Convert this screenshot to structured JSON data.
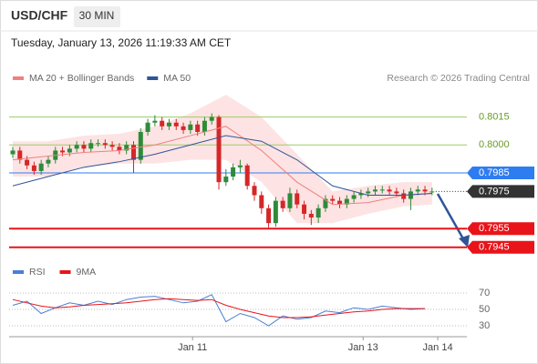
{
  "chart_data": [
    {
      "type": "candlestick",
      "title": "USD/CHF",
      "timeframe": "30 MIN",
      "timestamp": "Tuesday, January 13, 2026 11:19:33 AM CET",
      "credit": "Research © 2026 Trading Central",
      "xlim": [
        0,
        63
      ],
      "ylim": [
        0.7939,
        0.8029
      ],
      "up_color": "#2e8b3a",
      "down_color": "#d62728",
      "open": [
        0.7995,
        0.7997,
        0.7992,
        0.7989,
        0.7986,
        0.799,
        0.7992,
        0.7997,
        0.7996,
        0.7998,
        0.8,
        0.7998,
        0.8001,
        0.8001,
        0.8,
        0.7999,
        0.7997,
        0.8,
        0.7992,
        0.8007,
        0.8012,
        0.8013,
        0.801,
        0.8012,
        0.801,
        0.8008,
        0.8011,
        0.8007,
        0.8013,
        0.8015,
        0.798,
        0.7983,
        0.7988,
        0.7989,
        0.7978,
        0.7973,
        0.7966,
        0.7958,
        0.797,
        0.7966,
        0.7974,
        0.7968,
        0.7963,
        0.7961,
        0.7966,
        0.7971,
        0.797,
        0.7968,
        0.7971,
        0.7973,
        0.7974,
        0.7975,
        0.7976,
        0.7976,
        0.7975,
        0.7974,
        0.7971,
        0.7975,
        0.7976,
        0.7975
      ],
      "high": [
        0.7999,
        0.7999,
        0.7994,
        0.7991,
        0.7992,
        0.7994,
        0.7999,
        0.7999,
        0.8,
        0.8002,
        0.8002,
        0.8003,
        0.8003,
        0.8003,
        0.8002,
        0.8001,
        0.8002,
        0.8002,
        0.8009,
        0.8014,
        0.8016,
        0.8015,
        0.8014,
        0.8014,
        0.8012,
        0.8013,
        0.8013,
        0.8015,
        0.8017,
        0.8016,
        0.7987,
        0.799,
        0.7992,
        0.799,
        0.798,
        0.7975,
        0.7968,
        0.7972,
        0.7972,
        0.7977,
        0.7976,
        0.797,
        0.7965,
        0.7968,
        0.7973,
        0.7973,
        0.7972,
        0.7973,
        0.7975,
        0.7976,
        0.7977,
        0.7978,
        0.7978,
        0.7978,
        0.7977,
        0.7976,
        0.7977,
        0.7978,
        0.7978,
        0.7977
      ],
      "low": [
        0.7993,
        0.799,
        0.7987,
        0.7984,
        0.7984,
        0.7988,
        0.799,
        0.7994,
        0.7994,
        0.7996,
        0.7996,
        0.7996,
        0.7999,
        0.7998,
        0.7997,
        0.7995,
        0.7995,
        0.7985,
        0.799,
        0.8005,
        0.801,
        0.8008,
        0.8008,
        0.8008,
        0.8006,
        0.8006,
        0.8005,
        0.8005,
        0.8011,
        0.7976,
        0.7978,
        0.7981,
        0.7985,
        0.7976,
        0.797,
        0.7963,
        0.7955,
        0.7956,
        0.7964,
        0.7964,
        0.7966,
        0.796,
        0.7957,
        0.7958,
        0.7964,
        0.7968,
        0.7966,
        0.7966,
        0.7969,
        0.7971,
        0.7972,
        0.7973,
        0.7974,
        0.7973,
        0.7972,
        0.7969,
        0.7965,
        0.7973,
        0.7973,
        0.7973
      ],
      "close": [
        0.7997,
        0.7992,
        0.7989,
        0.7986,
        0.799,
        0.7992,
        0.7997,
        0.7996,
        0.7998,
        0.8,
        0.7998,
        0.8001,
        0.8001,
        0.8,
        0.7999,
        0.7997,
        0.8,
        0.7992,
        0.8007,
        0.8012,
        0.8013,
        0.801,
        0.8012,
        0.801,
        0.8008,
        0.8011,
        0.8007,
        0.8013,
        0.8015,
        0.798,
        0.7983,
        0.7988,
        0.7989,
        0.7978,
        0.7973,
        0.7966,
        0.7958,
        0.797,
        0.7966,
        0.7974,
        0.7968,
        0.7963,
        0.7961,
        0.7966,
        0.7971,
        0.797,
        0.7968,
        0.7971,
        0.7973,
        0.7974,
        0.7975,
        0.7976,
        0.7976,
        0.7975,
        0.7974,
        0.7971,
        0.7975,
        0.7976,
        0.7975,
        0.7975
      ],
      "series": [
        {
          "name": "MA 20 + Bollinger Bands",
          "color": "#f08080",
          "band_color": "#fde3e3",
          "x": [
            0,
            5,
            10,
            15,
            20,
            25,
            30,
            35,
            40,
            45,
            50,
            55,
            59
          ],
          "values": [
            0.7992,
            0.7994,
            0.7996,
            0.7997,
            0.8,
            0.8005,
            0.801,
            0.7997,
            0.798,
            0.7968,
            0.7969,
            0.7973,
            0.7974
          ],
          "upper": [
            0.8002,
            0.8002,
            0.8005,
            0.8006,
            0.801,
            0.8017,
            0.8027,
            0.8015,
            0.7995,
            0.7975,
            0.7978,
            0.798,
            0.798
          ],
          "lower": [
            0.7983,
            0.7983,
            0.7988,
            0.799,
            0.799,
            0.7992,
            0.7992,
            0.798,
            0.7958,
            0.7958,
            0.7963,
            0.7967,
            0.7968
          ]
        },
        {
          "name": "MA 50",
          "color": "#2f5597",
          "x": [
            0,
            5,
            10,
            15,
            20,
            25,
            30,
            35,
            40,
            45,
            50,
            55,
            59
          ],
          "values": [
            0.7978,
            0.7983,
            0.7988,
            0.7991,
            0.7995,
            0.8,
            0.8005,
            0.8002,
            0.7992,
            0.7978,
            0.7973,
            0.7973,
            0.7974
          ]
        }
      ],
      "levels": [
        {
          "value": 0.8015,
          "color": "#9ccc65",
          "box": false
        },
        {
          "value": 0.8,
          "label": "0.8000",
          "color": "#9ccc65",
          "box": false
        },
        {
          "value": 0.7985,
          "color": "#2e7df0",
          "box": true
        },
        {
          "value": 0.7975,
          "color": "#333333",
          "box": true,
          "dotted": true
        },
        {
          "value": 0.7955,
          "color": "#e8141a",
          "box": true
        },
        {
          "value": 0.7945,
          "color": "#e8141a",
          "box": true
        }
      ]
    },
    {
      "type": "line",
      "xlim": [
        0,
        63
      ],
      "ylim": [
        20,
        80
      ],
      "yticks": [
        70,
        50,
        30
      ],
      "xticks": [
        {
          "value": 25.3,
          "label": "Jan 11"
        },
        {
          "value": 49.3,
          "label": "Jan 13"
        },
        {
          "value": 59.8,
          "label": "Jan 14"
        }
      ],
      "x": [
        0,
        2,
        4,
        6,
        8,
        10,
        12,
        14,
        16,
        18,
        20,
        22,
        24,
        26,
        28,
        30,
        32,
        34,
        36,
        38,
        40,
        42,
        44,
        46,
        48,
        50,
        52,
        54,
        56,
        58
      ],
      "series": [
        {
          "name": "RSI",
          "color": "#4a7fd6",
          "values": [
            55,
            60,
            45,
            52,
            58,
            55,
            60,
            56,
            62,
            65,
            66,
            62,
            58,
            60,
            68,
            35,
            45,
            40,
            30,
            42,
            38,
            40,
            48,
            46,
            52,
            50,
            54,
            52,
            50,
            51
          ]
        },
        {
          "name": "9MA",
          "color": "#e8141a",
          "values": [
            62,
            58,
            54,
            52,
            53,
            55,
            56,
            57,
            58,
            60,
            62,
            63,
            62,
            61,
            62,
            55,
            50,
            46,
            42,
            40,
            40,
            41,
            43,
            45,
            47,
            48,
            50,
            51,
            51,
            51
          ]
        }
      ]
    }
  ]
}
